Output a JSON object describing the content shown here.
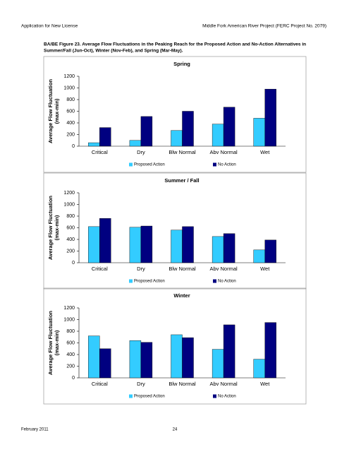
{
  "header": {
    "left": "Application for New License",
    "right": "Middle Fork American River Project (FERC Project No. 2079)"
  },
  "caption": [
    "BA/BE Figure 23. Average Flow Fluctuations in the Peaking Reach for the Proposed Action and No-Action Alternatives in",
    "Summer/Fall (Jun-Oct), Winter (Nov-Feb), and Spring (Mar-May)."
  ],
  "chart_data": [
    {
      "type": "bar",
      "title": "Spring",
      "ylabel": [
        "Average Flow Fluctuation",
        "(max-min)"
      ],
      "categories": [
        "Critical",
        "Dry",
        "Blw Normal",
        "Abv Normal",
        "Wet"
      ],
      "series": [
        {
          "name": "Proposed Action",
          "color": "#33ccff",
          "values": [
            60,
            100,
            270,
            380,
            480
          ]
        },
        {
          "name": "No Action",
          "color": "#000080",
          "values": [
            320,
            510,
            600,
            670,
            980
          ]
        }
      ],
      "ylim": [
        0,
        1200
      ],
      "yticks": [
        0,
        200,
        400,
        600,
        800,
        1000,
        1200
      ],
      "legend": "bottom"
    },
    {
      "type": "bar",
      "title": "Summer / Fall",
      "ylabel": [
        "Average Flow Fluctuation",
        "(max-min)"
      ],
      "categories": [
        "Critical",
        "Dry",
        "Blw Normal",
        "Abv Normal",
        "Wet"
      ],
      "series": [
        {
          "name": "Proposed Action",
          "color": "#33ccff",
          "values": [
            620,
            610,
            560,
            450,
            220
          ]
        },
        {
          "name": "No Action",
          "color": "#000080",
          "values": [
            760,
            630,
            620,
            500,
            390
          ]
        }
      ],
      "ylim": [
        0,
        1200
      ],
      "yticks": [
        0,
        200,
        400,
        600,
        800,
        1000,
        1200
      ],
      "legend": "bottom"
    },
    {
      "type": "bar",
      "title": "Winter",
      "ylabel": [
        "Average Flow Fluctuation",
        "(max-min)"
      ],
      "categories": [
        "Critical",
        "Dry",
        "Blw Normal",
        "Abv Normal",
        "Wet"
      ],
      "series": [
        {
          "name": "Proposed Action",
          "color": "#33ccff",
          "values": [
            720,
            640,
            740,
            490,
            320
          ]
        },
        {
          "name": "No Action",
          "color": "#000080",
          "values": [
            500,
            610,
            690,
            910,
            950
          ]
        }
      ],
      "ylim": [
        0,
        1200
      ],
      "yticks": [
        0,
        200,
        400,
        600,
        800,
        1000,
        1200
      ],
      "legend": "bottom"
    }
  ],
  "footer": {
    "left": "February 2011",
    "center": "24"
  }
}
